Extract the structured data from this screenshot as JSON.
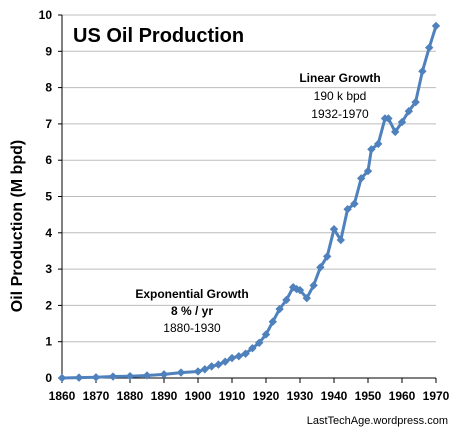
{
  "chart_data": {
    "type": "line",
    "title": "US Oil Production",
    "xlabel": "",
    "ylabel": "Oil Production (M bpd)",
    "xlim": [
      1860,
      1970
    ],
    "ylim": [
      0,
      10
    ],
    "x_ticks": [
      1860,
      1870,
      1880,
      1890,
      1900,
      1910,
      1920,
      1930,
      1940,
      1950,
      1960,
      1970
    ],
    "y_ticks": [
      0,
      1,
      2,
      3,
      4,
      5,
      6,
      7,
      8,
      9,
      10
    ],
    "grid": "horizontal",
    "marker": "diamond",
    "line_color": "#4f81bd",
    "series": [
      {
        "x": [
          1860,
          1865,
          1870,
          1875,
          1880,
          1885,
          1890,
          1895,
          1900,
          1902,
          1904,
          1906,
          1908,
          1910,
          1912,
          1914,
          1916,
          1918,
          1920,
          1922,
          1924,
          1926,
          1928,
          1929,
          1930,
          1932,
          1934,
          1936,
          1938,
          1940,
          1942,
          1944,
          1946,
          1948,
          1950,
          1951,
          1953,
          1955,
          1956,
          1958,
          1960,
          1962,
          1964,
          1966,
          1968,
          1970
        ],
        "y": [
          0.0,
          0.01,
          0.02,
          0.04,
          0.05,
          0.07,
          0.1,
          0.15,
          0.18,
          0.24,
          0.32,
          0.37,
          0.45,
          0.55,
          0.6,
          0.67,
          0.82,
          0.97,
          1.2,
          1.55,
          1.9,
          2.15,
          2.5,
          2.45,
          2.42,
          2.2,
          2.55,
          3.05,
          3.35,
          4.1,
          3.8,
          4.65,
          4.8,
          5.5,
          5.7,
          6.3,
          6.45,
          7.15,
          7.15,
          6.78,
          7.05,
          7.35,
          7.6,
          8.45,
          9.1,
          9.7
        ]
      }
    ],
    "annotations": [
      {
        "lines": [
          "Linear Growth",
          "190 k bpd",
          "1932-1970"
        ],
        "bold_lines": 1
      },
      {
        "lines": [
          "Exponential Growth",
          "8 % / yr",
          "1880-1930"
        ],
        "bold_lines": 2
      }
    ]
  },
  "credit": "LastTechAge.wordpress.com"
}
